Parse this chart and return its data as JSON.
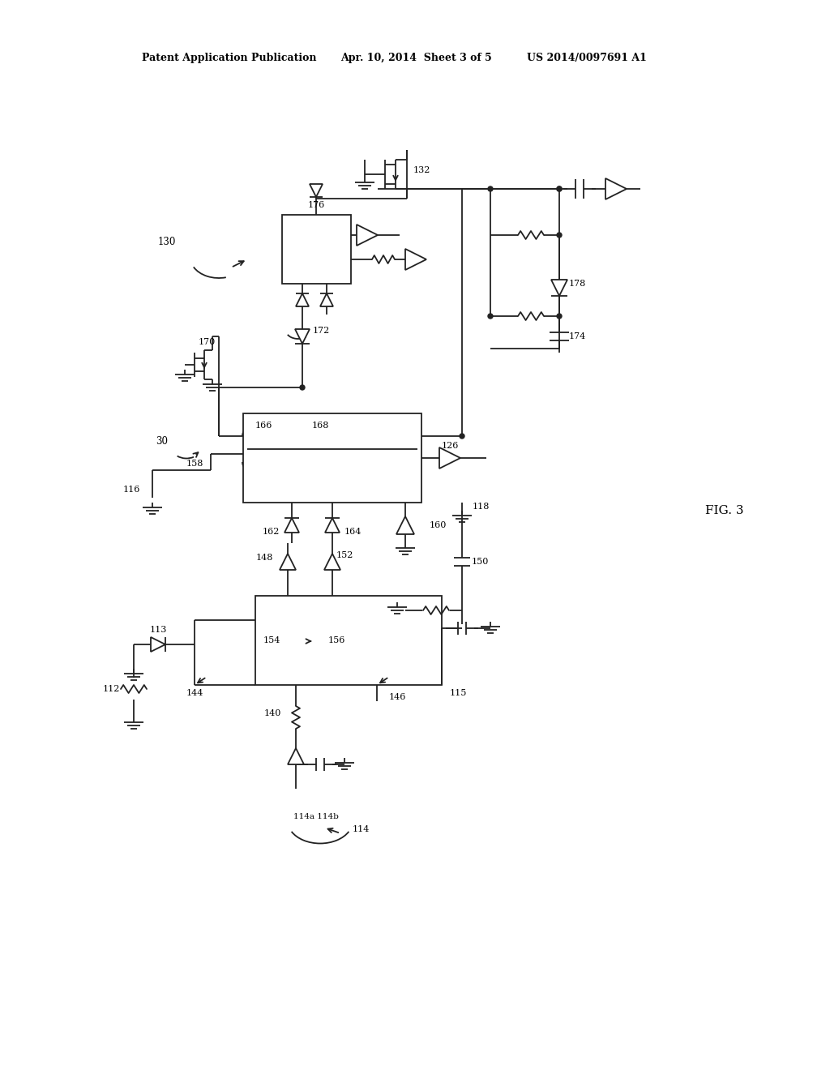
{
  "title_left": "Patent Application Publication",
  "title_mid": "Apr. 10, 2014  Sheet 3 of 5",
  "title_right": "US 2014/0097691 A1",
  "fig_label": "FIG. 3",
  "bg_color": "#ffffff",
  "line_color": "#222222"
}
